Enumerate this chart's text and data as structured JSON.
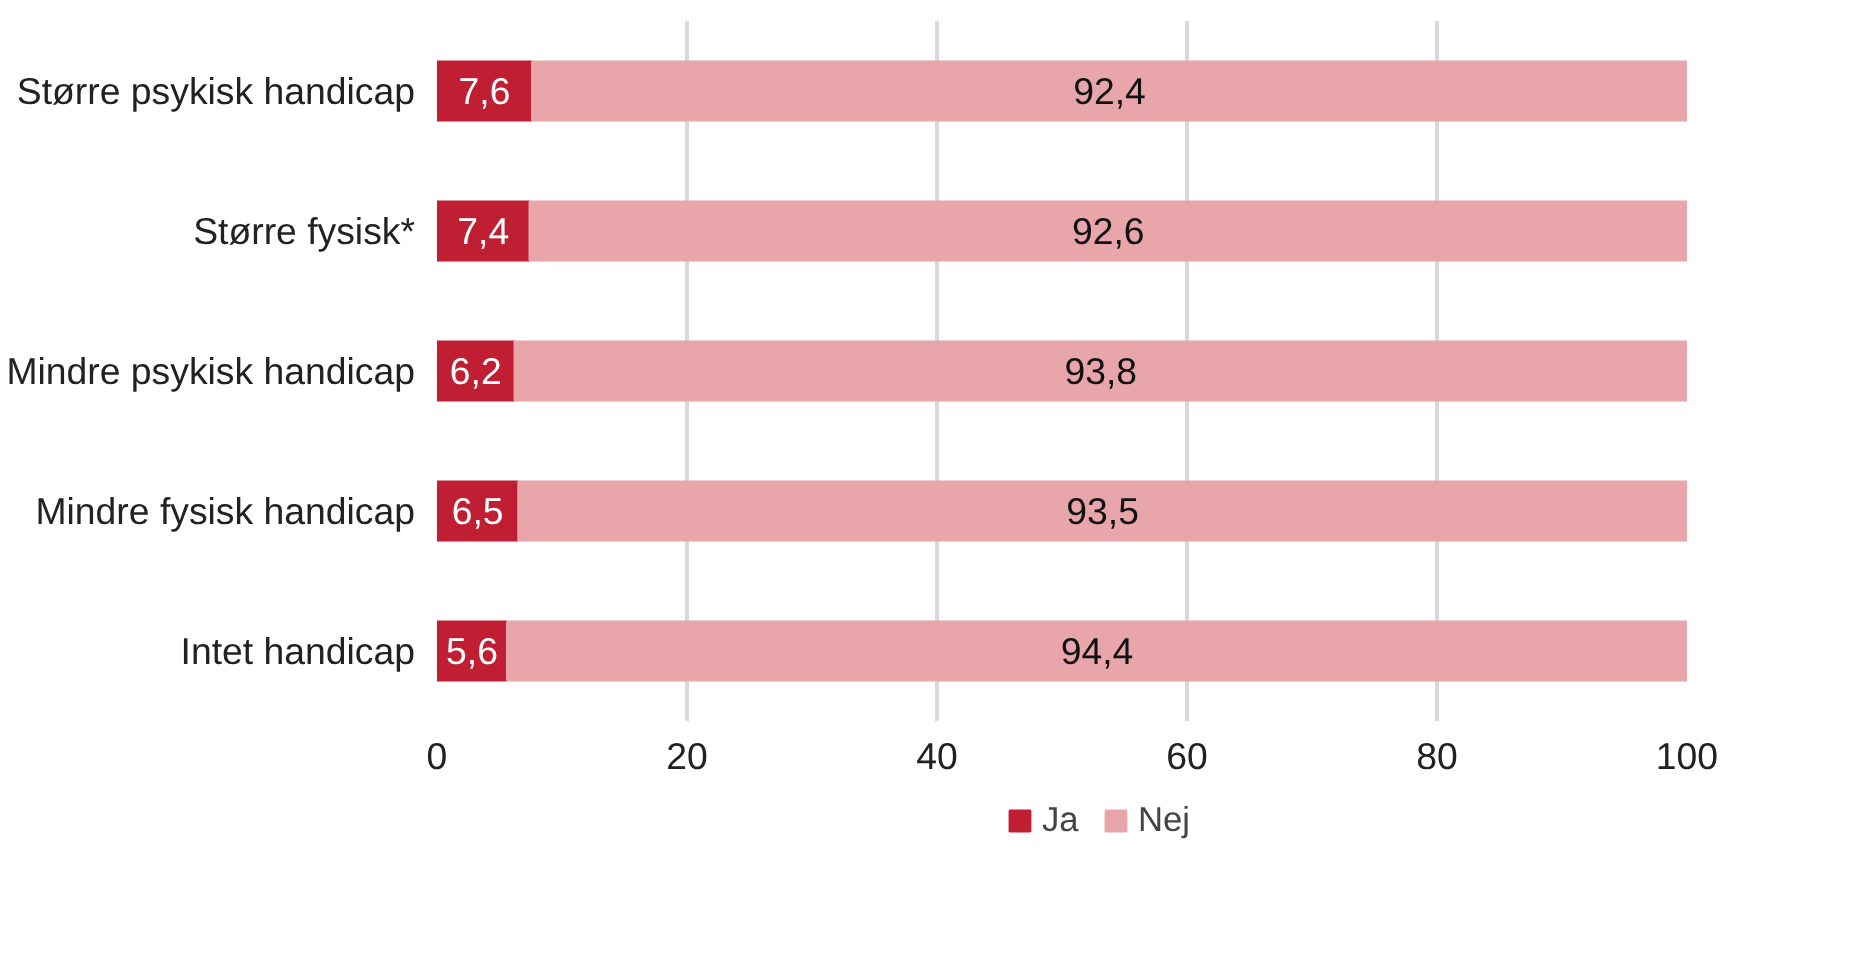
{
  "chart_data": {
    "type": "bar",
    "orientation": "horizontal",
    "stacked": true,
    "categories": [
      "Større psykisk handicap",
      "Større fysisk*",
      "Mindre psykisk handicap",
      "Mindre fysisk handicap",
      "Intet handicap"
    ],
    "series": [
      {
        "name": "Ja",
        "color": "#c01f33",
        "values": [
          7.6,
          7.4,
          6.2,
          6.5,
          5.6
        ],
        "value_labels": [
          "7,6",
          "7,4",
          "6,2",
          "6,5",
          "5,6"
        ]
      },
      {
        "name": "Nej",
        "color": "#e8a6ab",
        "values": [
          92.4,
          92.6,
          93.8,
          93.5,
          94.4
        ],
        "value_labels": [
          "92,4",
          "92,6",
          "93,8",
          "93,5",
          "94,4"
        ]
      }
    ],
    "xlim": [
      0,
      100
    ],
    "xticks": [
      0,
      20,
      40,
      60,
      80,
      100
    ],
    "grid": "x",
    "legend": "bottom"
  }
}
